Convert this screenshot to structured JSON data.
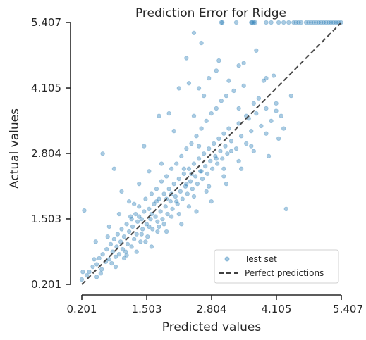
{
  "chart_data": {
    "type": "scatter",
    "title": "Prediction Error for Ridge",
    "xlabel": "Predicted values",
    "ylabel": "Actual values",
    "xlim": [
      0.201,
      5.407
    ],
    "ylim": [
      0.201,
      5.407
    ],
    "xticks": [
      "0.201",
      "1.503",
      "2.804",
      "4.105",
      "5.407"
    ],
    "yticks": [
      "0.201",
      "1.503",
      "2.804",
      "4.105",
      "5.407"
    ],
    "grid": false,
    "legend_position": "bottom-right",
    "legend": [
      "Test set",
      "Perfect predictions"
    ],
    "point_color": "#1f77b4",
    "line_color": "#404040",
    "series": [
      {
        "name": "Test set",
        "points": [
          [
            0.35,
            0.45
          ],
          [
            0.42,
            0.55
          ],
          [
            0.5,
            0.6
          ],
          [
            0.55,
            0.72
          ],
          [
            0.6,
            0.5
          ],
          [
            0.62,
            0.8
          ],
          [
            0.68,
            0.65
          ],
          [
            0.7,
            0.9
          ],
          [
            0.75,
            0.7
          ],
          [
            0.78,
            1.0
          ],
          [
            0.8,
            0.62
          ],
          [
            0.82,
            0.85
          ],
          [
            0.85,
            1.1
          ],
          [
            0.88,
            0.75
          ],
          [
            0.9,
            0.95
          ],
          [
            0.92,
            1.2
          ],
          [
            0.95,
            0.8
          ],
          [
            0.98,
            1.05
          ],
          [
            1.0,
            1.3
          ],
          [
            1.02,
            0.9
          ],
          [
            1.05,
            1.15
          ],
          [
            1.08,
            0.85
          ],
          [
            1.1,
            1.4
          ],
          [
            1.12,
            1.0
          ],
          [
            1.15,
            1.25
          ],
          [
            1.18,
            1.55
          ],
          [
            1.2,
            0.95
          ],
          [
            1.22,
            1.35
          ],
          [
            1.25,
            1.1
          ],
          [
            1.28,
            1.6
          ],
          [
            1.3,
            1.2
          ],
          [
            1.32,
            1.45
          ],
          [
            1.35,
            1.75
          ],
          [
            1.38,
            1.05
          ],
          [
            1.4,
            1.5
          ],
          [
            1.42,
            1.3
          ],
          [
            1.45,
            1.65
          ],
          [
            1.48,
            1.9
          ],
          [
            1.5,
            1.4
          ],
          [
            1.52,
            1.15
          ],
          [
            1.55,
            1.7
          ],
          [
            1.58,
            1.5
          ],
          [
            1.6,
            2.0
          ],
          [
            1.62,
            1.3
          ],
          [
            1.65,
            1.8
          ],
          [
            1.68,
            1.55
          ],
          [
            1.7,
            2.1
          ],
          [
            1.72,
            1.45
          ],
          [
            1.75,
            1.9
          ],
          [
            1.78,
            1.65
          ],
          [
            1.8,
            2.25
          ],
          [
            1.82,
            1.5
          ],
          [
            1.85,
            2.0
          ],
          [
            1.88,
            1.75
          ],
          [
            1.9,
            2.35
          ],
          [
            1.92,
            1.6
          ],
          [
            1.95,
            2.1
          ],
          [
            1.98,
            1.85
          ],
          [
            2.0,
            2.5
          ],
          [
            2.02,
            1.7
          ],
          [
            2.05,
            2.2
          ],
          [
            2.08,
            1.95
          ],
          [
            2.1,
            2.6
          ],
          [
            2.12,
            1.8
          ],
          [
            2.15,
            2.3
          ],
          [
            2.18,
            2.05
          ],
          [
            2.2,
            2.75
          ],
          [
            2.22,
            1.9
          ],
          [
            2.25,
            2.4
          ],
          [
            2.28,
            2.15
          ],
          [
            2.3,
            2.9
          ],
          [
            2.32,
            2.0
          ],
          [
            2.35,
            2.5
          ],
          [
            2.38,
            2.25
          ],
          [
            2.4,
            3.0
          ],
          [
            2.42,
            2.1
          ],
          [
            2.45,
            2.6
          ],
          [
            2.48,
            2.35
          ],
          [
            2.5,
            3.15
          ],
          [
            2.52,
            2.2
          ],
          [
            2.55,
            2.7
          ],
          [
            2.58,
            2.45
          ],
          [
            2.6,
            3.3
          ],
          [
            2.62,
            2.3
          ],
          [
            2.65,
            2.8
          ],
          [
            2.68,
            2.55
          ],
          [
            2.7,
            3.45
          ],
          [
            2.72,
            2.4
          ],
          [
            2.75,
            2.9
          ],
          [
            2.78,
            2.65
          ],
          [
            2.8,
            3.6
          ],
          [
            2.82,
            2.5
          ],
          [
            2.85,
            3.0
          ],
          [
            2.88,
            2.75
          ],
          [
            2.9,
            3.7
          ],
          [
            2.92,
            2.6
          ],
          [
            2.95,
            3.1
          ],
          [
            2.98,
            2.85
          ],
          [
            3.0,
            3.85
          ],
          [
            3.02,
            2.7
          ],
          [
            3.05,
            3.2
          ],
          [
            3.08,
            2.95
          ],
          [
            3.1,
            3.95
          ],
          [
            3.12,
            2.8
          ],
          [
            3.15,
            3.3
          ],
          [
            3.2,
            3.05
          ],
          [
            3.25,
            4.05
          ],
          [
            3.3,
            2.9
          ],
          [
            3.35,
            3.4
          ],
          [
            3.4,
            3.15
          ],
          [
            3.45,
            4.15
          ],
          [
            3.5,
            3.0
          ],
          [
            3.55,
            3.5
          ],
          [
            3.6,
            3.25
          ],
          [
            3.7,
            3.6
          ],
          [
            3.8,
            3.35
          ],
          [
            3.9,
            3.7
          ],
          [
            4.0,
            3.45
          ],
          [
            4.1,
            3.8
          ],
          [
            4.2,
            3.55
          ],
          [
            3.65,
            2.85
          ],
          [
            3.75,
            3.9
          ],
          [
            3.85,
            4.25
          ],
          [
            3.95,
            2.75
          ],
          [
            4.05,
            4.35
          ],
          [
            4.15,
            3.1
          ],
          [
            4.25,
            3.3
          ],
          [
            3.35,
            4.55
          ],
          [
            2.95,
            4.65
          ],
          [
            2.75,
            4.3
          ],
          [
            2.55,
            4.1
          ],
          [
            2.35,
            4.2
          ],
          [
            2.15,
            4.1
          ],
          [
            1.95,
            3.6
          ],
          [
            1.75,
            3.55
          ],
          [
            1.55,
            2.45
          ],
          [
            1.35,
            2.2
          ],
          [
            1.15,
            1.85
          ],
          [
            0.95,
            1.6
          ],
          [
            0.75,
            1.35
          ],
          [
            0.62,
            2.8
          ],
          [
            0.85,
            2.5
          ],
          [
            1.0,
            2.05
          ],
          [
            0.48,
            1.05
          ],
          [
            0.3,
            0.38
          ],
          [
            1.3,
            0.85
          ],
          [
            1.6,
            0.95
          ],
          [
            1.9,
            1.25
          ],
          [
            2.2,
            1.4
          ],
          [
            2.5,
            1.65
          ],
          [
            2.8,
            1.85
          ],
          [
            3.1,
            2.2
          ],
          [
            3.4,
            2.5
          ],
          [
            4.3,
            1.7
          ],
          [
            2.3,
            4.7
          ],
          [
            3.9,
            4.3
          ],
          [
            4.4,
            3.95
          ],
          [
            1.45,
            2.95
          ],
          [
            1.8,
            2.6
          ],
          [
            2.05,
            3.25
          ],
          [
            2.45,
            3.55
          ],
          [
            2.65,
            3.95
          ],
          [
            2.9,
            4.45
          ],
          [
            3.15,
            4.25
          ],
          [
            3.45,
            4.6
          ],
          [
            3.7,
            4.85
          ],
          [
            2.6,
            5.0
          ],
          [
            2.45,
            5.2
          ],
          [
            0.45,
            0.7
          ],
          [
            0.58,
            0.42
          ],
          [
            0.72,
            1.15
          ],
          [
            0.88,
            0.55
          ],
          [
            1.05,
            0.72
          ],
          [
            1.25,
            1.8
          ],
          [
            1.48,
            1.05
          ],
          [
            1.72,
            1.25
          ],
          [
            2.0,
            1.55
          ],
          [
            2.35,
            1.75
          ],
          [
            2.7,
            2.05
          ],
          [
            3.05,
            2.35
          ],
          [
            3.35,
            2.65
          ],
          [
            3.6,
            2.95
          ],
          [
            3.9,
            3.2
          ],
          [
            4.1,
            3.65
          ],
          [
            1.35,
            1.55
          ],
          [
            1.55,
            1.35
          ],
          [
            1.7,
            1.85
          ],
          [
            1.85,
            1.4
          ],
          [
            2.0,
            2.0
          ],
          [
            2.15,
            1.6
          ],
          [
            2.3,
            2.2
          ],
          [
            2.45,
            1.95
          ],
          [
            2.6,
            2.45
          ],
          [
            2.75,
            2.15
          ],
          [
            2.9,
            2.7
          ],
          [
            3.05,
            2.5
          ],
          [
            3.2,
            2.85
          ],
          [
            3.35,
            3.7
          ],
          [
            3.5,
            3.55
          ],
          [
            3.65,
            3.8
          ],
          [
            1.1,
            0.78
          ],
          [
            1.2,
            1.5
          ],
          [
            1.4,
            1.2
          ],
          [
            1.6,
            1.6
          ],
          [
            1.75,
            1.35
          ],
          [
            1.9,
            1.9
          ],
          [
            2.1,
            1.85
          ],
          [
            2.25,
            2.5
          ],
          [
            2.4,
            2.4
          ],
          [
            2.55,
            2.95
          ],
          [
            3.0,
            5.407
          ],
          [
            3.02,
            5.407
          ],
          [
            3.3,
            5.407
          ],
          [
            3.6,
            5.407
          ],
          [
            3.62,
            5.407
          ],
          [
            3.65,
            5.407
          ],
          [
            3.68,
            5.407
          ],
          [
            3.9,
            5.407
          ],
          [
            4.0,
            5.407
          ],
          [
            4.15,
            5.407
          ],
          [
            4.25,
            5.407
          ],
          [
            4.35,
            5.407
          ],
          [
            4.45,
            5.407
          ],
          [
            4.5,
            5.407
          ],
          [
            4.55,
            5.407
          ],
          [
            4.6,
            5.407
          ],
          [
            4.7,
            5.407
          ],
          [
            4.75,
            5.407
          ],
          [
            4.8,
            5.407
          ],
          [
            4.85,
            5.407
          ],
          [
            4.9,
            5.407
          ],
          [
            4.95,
            5.407
          ],
          [
            5.0,
            5.407
          ],
          [
            5.05,
            5.407
          ],
          [
            5.1,
            5.407
          ],
          [
            5.15,
            5.407
          ],
          [
            5.2,
            5.407
          ],
          [
            5.25,
            5.407
          ],
          [
            5.3,
            5.407
          ],
          [
            5.35,
            5.407
          ],
          [
            5.4,
            5.407
          ],
          [
            0.2,
            0.3
          ],
          [
            0.22,
            0.45
          ],
          [
            0.25,
            1.67
          ],
          [
            0.5,
            0.35
          ]
        ]
      }
    ]
  }
}
